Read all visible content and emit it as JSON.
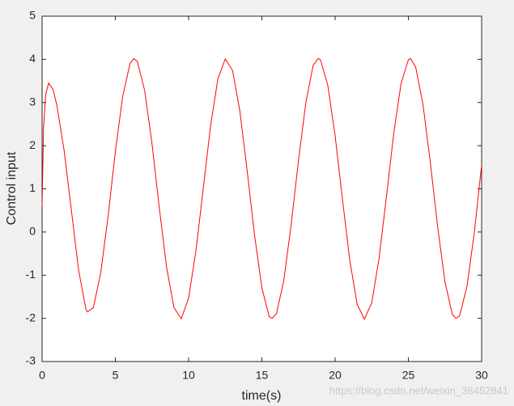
{
  "chart_data": {
    "type": "line",
    "xlabel": "time(s)",
    "ylabel": "Control input",
    "watermark": "https://blog.csdn.net/weixin_38452841",
    "x": [
      0,
      0.1,
      0.25,
      0.45,
      0.75,
      1,
      1.5,
      2,
      2.5,
      3,
      3.1,
      3.5,
      4,
      4.5,
      5,
      5.5,
      6,
      6.25,
      6.5,
      7,
      7.5,
      8,
      8.5,
      9,
      9.5,
      10,
      10.5,
      11,
      11.5,
      12,
      12.5,
      13,
      13.5,
      14,
      14.5,
      15,
      15.5,
      15.7,
      16,
      16.5,
      17,
      17.5,
      18,
      18.5,
      18.85,
      19,
      19.5,
      20,
      20.5,
      21,
      21.5,
      22,
      22.5,
      23,
      23.5,
      24,
      24.5,
      25,
      25.15,
      25.5,
      26,
      26.5,
      27,
      27.5,
      28,
      28.25,
      28.5,
      29,
      29.5,
      30
    ],
    "series": [
      {
        "color": "#ff0000",
        "values": [
          0.6,
          2.4,
          3.2,
          3.45,
          3.3,
          2.95,
          1.9,
          0.5,
          -0.9,
          -1.8,
          -1.85,
          -1.75,
          -0.95,
          0.35,
          1.86,
          3.14,
          3.9,
          4.02,
          3.95,
          3.28,
          2.05,
          0.56,
          -0.82,
          -1.75,
          -2.01,
          -1.53,
          -0.44,
          1.01,
          2.46,
          3.55,
          4.01,
          3.74,
          2.8,
          1.41,
          -0.07,
          -1.29,
          -1.96,
          -2.0,
          -1.89,
          -1.12,
          0.17,
          1.66,
          2.99,
          3.86,
          4.02,
          3.99,
          3.4,
          2.23,
          0.76,
          -0.65,
          -1.67,
          -2.02,
          -1.64,
          -0.61,
          0.81,
          2.28,
          3.44,
          3.99,
          4.02,
          3.82,
          2.95,
          1.61,
          0.12,
          -1.16,
          -1.91,
          -2.0,
          -1.94,
          -1.26,
          -0.02,
          1.55
        ]
      }
    ],
    "xlim": [
      0,
      30
    ],
    "xticks": [
      0,
      5,
      10,
      15,
      20,
      25,
      30
    ],
    "ylim": [
      -3,
      5
    ],
    "yticks": [
      -3,
      -2,
      -1,
      0,
      1,
      2,
      3,
      4,
      5
    ],
    "grid": false
  }
}
